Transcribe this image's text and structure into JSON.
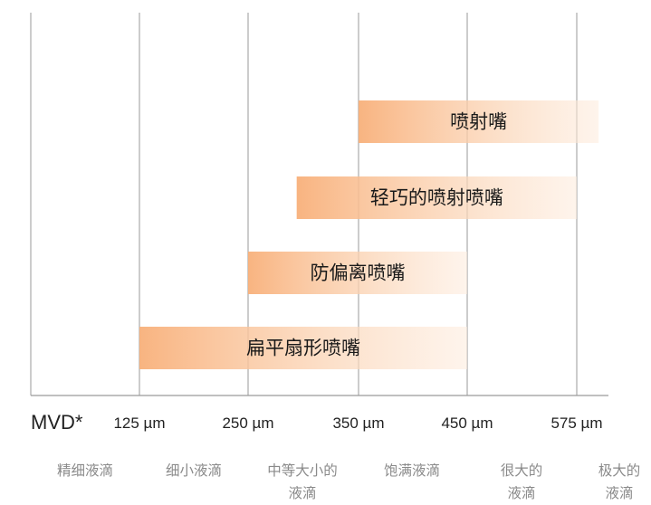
{
  "chart_data": {
    "type": "bar",
    "orientation": "horizontal-range",
    "x_label": "MVD*",
    "x_ticks": [
      "125 µm",
      "250 µm",
      "350 µm",
      "450 µm",
      "575 µm"
    ],
    "x_tick_values": [
      125,
      250,
      350,
      450,
      575
    ],
    "bars": [
      {
        "label": "喷射嘴",
        "start": 350,
        "end": 600
      },
      {
        "label": "轻巧的喷射喷嘴",
        "start": 294,
        "end": 575
      },
      {
        "label": "防偏离喷嘴",
        "start": 250,
        "end": 450
      },
      {
        "label": "扁平扇形喷嘴",
        "start": 125,
        "end": 450
      }
    ],
    "categories": [
      [
        "精细液滴"
      ],
      [
        "细小液滴"
      ],
      [
        "中等大小的",
        "液滴"
      ],
      [
        "饱满液滴"
      ],
      [
        "很大的",
        "液滴"
      ],
      [
        "极大的",
        "液滴"
      ]
    ],
    "colors": {
      "bar": "#f8b07a",
      "grid": "#9a9a9a"
    }
  }
}
